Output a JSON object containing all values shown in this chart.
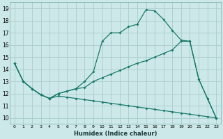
{
  "xlabel": "Humidex (Indice chaleur)",
  "xlim": [
    -0.5,
    23.5
  ],
  "ylim": [
    9.5,
    19.5
  ],
  "background_color": "#cce8e8",
  "grid_color": "#aacccc",
  "line_color": "#1a7a6a",
  "xticks": [
    0,
    1,
    2,
    3,
    4,
    5,
    6,
    7,
    8,
    9,
    10,
    11,
    12,
    13,
    14,
    15,
    16,
    17,
    18,
    19,
    20,
    21,
    22,
    23
  ],
  "yticks": [
    10,
    11,
    12,
    13,
    14,
    15,
    16,
    17,
    18,
    19
  ],
  "line1_x": [
    0,
    1,
    2,
    3,
    4,
    5,
    6,
    7,
    8,
    9,
    10,
    11,
    12,
    13,
    14,
    15,
    16,
    17,
    18,
    19,
    20,
    21,
    22,
    23
  ],
  "line1_y": [
    14.5,
    13.0,
    12.4,
    11.9,
    11.6,
    12.0,
    12.2,
    12.4,
    13.0,
    13.8,
    16.3,
    17.0,
    17.0,
    17.5,
    17.7,
    18.9,
    18.8,
    18.1,
    17.2,
    16.4,
    16.3,
    13.2,
    11.6,
    10.0
  ],
  "line2_x": [
    0,
    1,
    2,
    3,
    4,
    5,
    6,
    7,
    8,
    9,
    10,
    11,
    12,
    13,
    14,
    15,
    16,
    17,
    18,
    19,
    20,
    21,
    22,
    23
  ],
  "line2_y": [
    14.5,
    13.0,
    12.4,
    11.9,
    11.6,
    12.0,
    12.2,
    12.4,
    12.5,
    13.0,
    13.3,
    13.6,
    13.9,
    14.2,
    14.5,
    14.7,
    15.0,
    15.3,
    15.6,
    16.3,
    16.3,
    13.2,
    11.6,
    10.0
  ],
  "line3_x": [
    0,
    1,
    2,
    3,
    4,
    5,
    6,
    7,
    8,
    9,
    10,
    11,
    12,
    13,
    14,
    15,
    16,
    17,
    18,
    19,
    20,
    21,
    22,
    23
  ],
  "line3_y": [
    14.5,
    13.0,
    12.4,
    11.9,
    11.6,
    11.8,
    11.7,
    11.6,
    11.5,
    11.4,
    11.3,
    11.2,
    11.1,
    11.0,
    10.9,
    10.8,
    10.7,
    10.6,
    10.5,
    10.4,
    10.3,
    10.2,
    10.1,
    10.0
  ]
}
